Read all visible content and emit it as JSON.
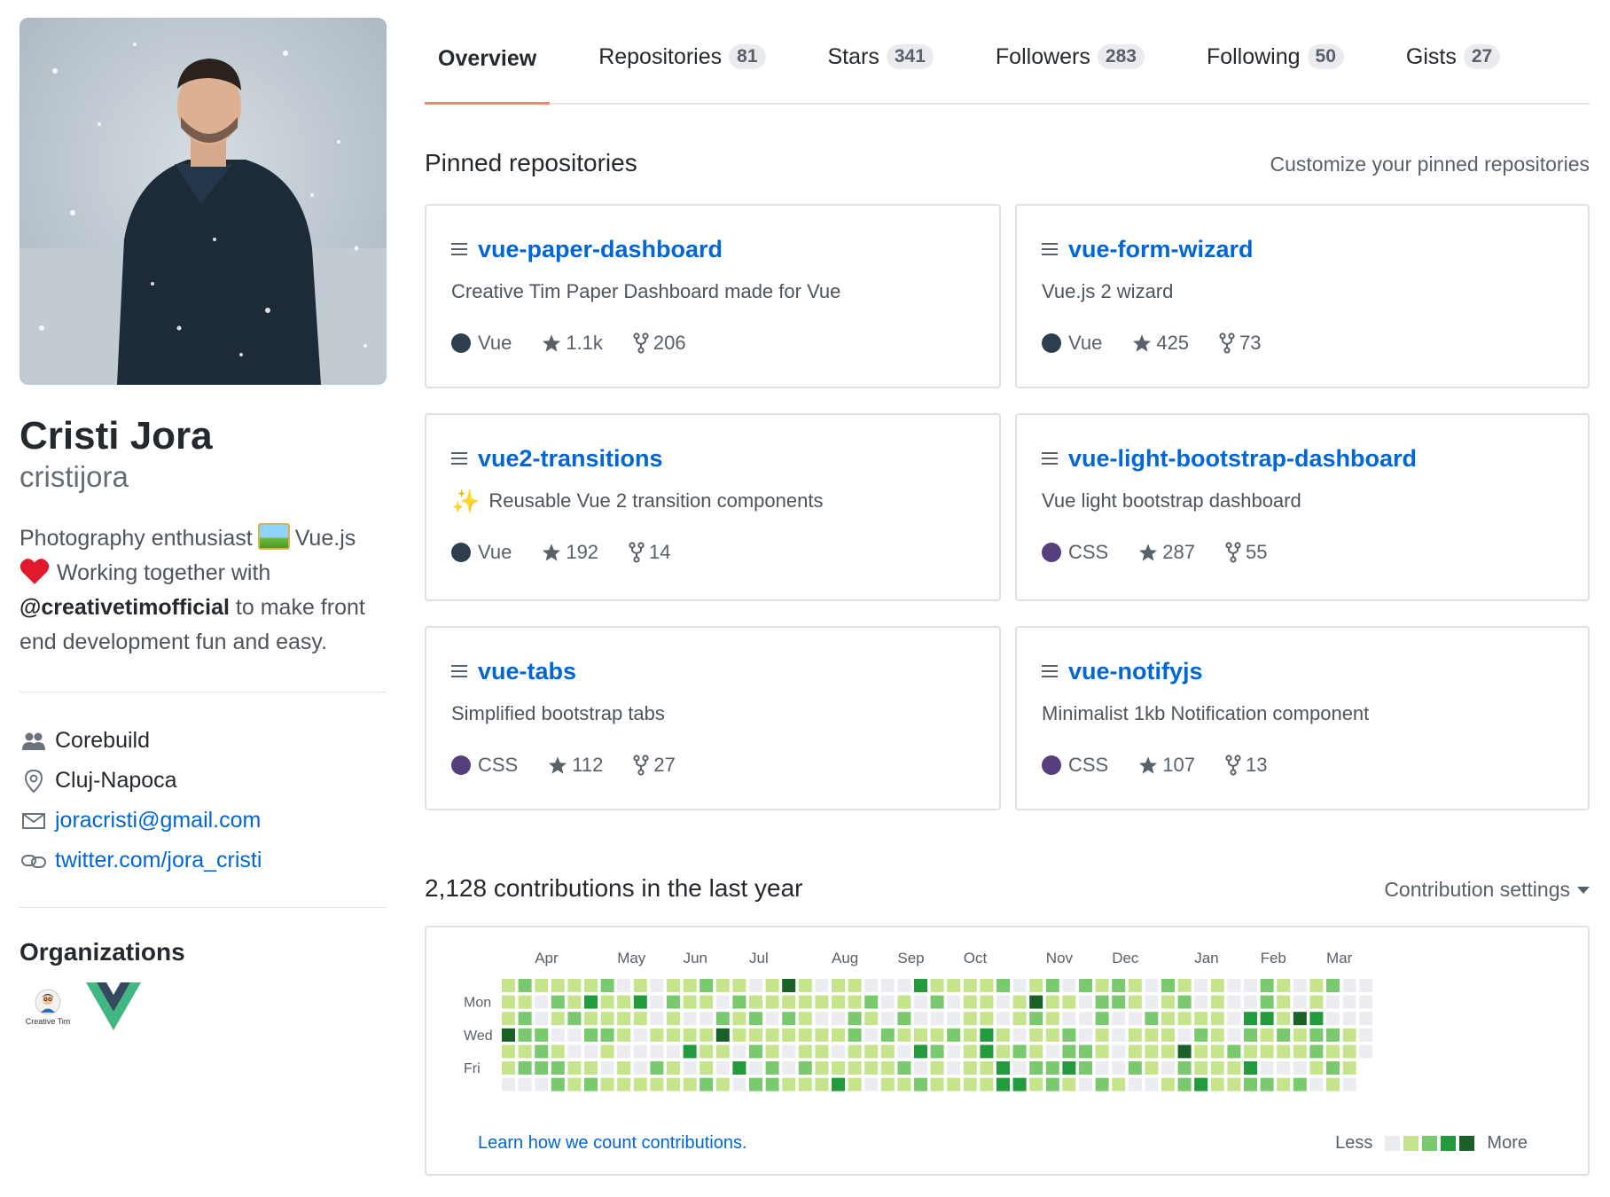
{
  "profile": {
    "full_name": "Cristi Jora",
    "username": "cristijora",
    "bio_part1": "Photography enthusiast",
    "bio_part2": "Vue.js",
    "bio_part3": "Working together with",
    "bio_mention": "@creativetimofficial",
    "bio_part4": "to make front end development fun and easy.",
    "company": "Corebuild",
    "location": "Cluj-Napoca",
    "email": "joracristi@gmail.com",
    "website": "twitter.com/jora_cristi"
  },
  "organizations": {
    "title": "Organizations",
    "items": [
      {
        "name": "creative-tim",
        "label": "Creative Tim"
      },
      {
        "name": "vuejs",
        "label": ""
      }
    ]
  },
  "tabs": [
    {
      "label": "Overview",
      "count": null,
      "active": true
    },
    {
      "label": "Repositories",
      "count": "81",
      "active": false
    },
    {
      "label": "Stars",
      "count": "341",
      "active": false
    },
    {
      "label": "Followers",
      "count": "283",
      "active": false
    },
    {
      "label": "Following",
      "count": "50",
      "active": false
    },
    {
      "label": "Gists",
      "count": "27",
      "active": false
    }
  ],
  "pinned": {
    "title": "Pinned repositories",
    "customize_link": "Customize your pinned repositories",
    "repos": [
      {
        "name": "vue-paper-dashboard",
        "description": "Creative Tim Paper Dashboard made for Vue",
        "language": "Vue",
        "lang_color": "#2c3e50",
        "stars": "1.1k",
        "forks": "206",
        "sparkle": false
      },
      {
        "name": "vue-form-wizard",
        "description": "Vue.js 2 wizard",
        "language": "Vue",
        "lang_color": "#2c3e50",
        "stars": "425",
        "forks": "73",
        "sparkle": false
      },
      {
        "name": "vue2-transitions",
        "description": "Reusable Vue 2 transition components",
        "language": "Vue",
        "lang_color": "#2c3e50",
        "stars": "192",
        "forks": "14",
        "sparkle": true
      },
      {
        "name": "vue-light-bootstrap-dashboard",
        "description": "Vue light bootstrap dashboard",
        "language": "CSS",
        "lang_color": "#563d7c",
        "stars": "287",
        "forks": "55",
        "sparkle": false
      },
      {
        "name": "vue-tabs",
        "description": "Simplified bootstrap tabs",
        "language": "CSS",
        "lang_color": "#563d7c",
        "stars": "112",
        "forks": "27",
        "sparkle": false
      },
      {
        "name": "vue-notifyjs",
        "description": "Minimalist 1kb Notification component",
        "language": "CSS",
        "lang_color": "#563d7c",
        "stars": "107",
        "forks": "13",
        "sparkle": false
      }
    ]
  },
  "contributions": {
    "title": "2,128 contributions in the last year",
    "settings_label": "Contribution settings",
    "months": [
      "Apr",
      "May",
      "Jun",
      "Jul",
      "Aug",
      "Sep",
      "Oct",
      "Nov",
      "Dec",
      "Jan",
      "Feb",
      "Mar"
    ],
    "day_labels": [
      "Mon",
      "Wed",
      "Fri"
    ],
    "learn_link": "Learn how we count contributions.",
    "legend_less": "Less",
    "legend_more": "More",
    "colors": [
      "#ebedf0",
      "#c6e48b",
      "#7bc96f",
      "#239a3b",
      "#196127"
    ]
  }
}
